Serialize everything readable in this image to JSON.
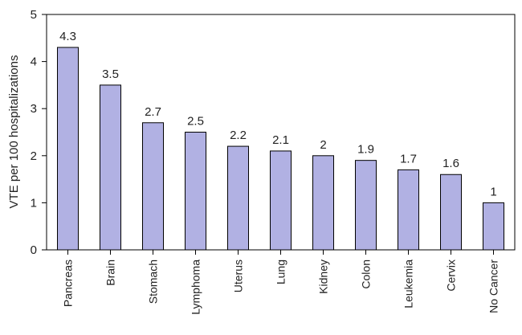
{
  "chart_data": {
    "type": "bar",
    "title": "",
    "xlabel": "",
    "ylabel": "VTE per 100 hospitalizations",
    "ylim": [
      0,
      5
    ],
    "yticks": [
      0,
      1,
      2,
      3,
      4,
      5
    ],
    "grid": false,
    "legend": "none",
    "bar_color": "#b1b1e3",
    "bar_stroke": "#000000",
    "categories": [
      "Pancreas",
      "Brain",
      "Stomach",
      "Lymphoma",
      "Uterus",
      "Lung",
      "Kidney",
      "Colon",
      "Leukemia",
      "Cervix",
      "No Cancer"
    ],
    "values": [
      4.3,
      3.5,
      2.7,
      2.5,
      2.2,
      2.1,
      2,
      1.9,
      1.7,
      1.6,
      1
    ],
    "value_labels": [
      "4.3",
      "3.5",
      "2.7",
      "2.5",
      "2.2",
      "2.1",
      "2",
      "1.9",
      "1.7",
      "1.6",
      "1"
    ]
  }
}
